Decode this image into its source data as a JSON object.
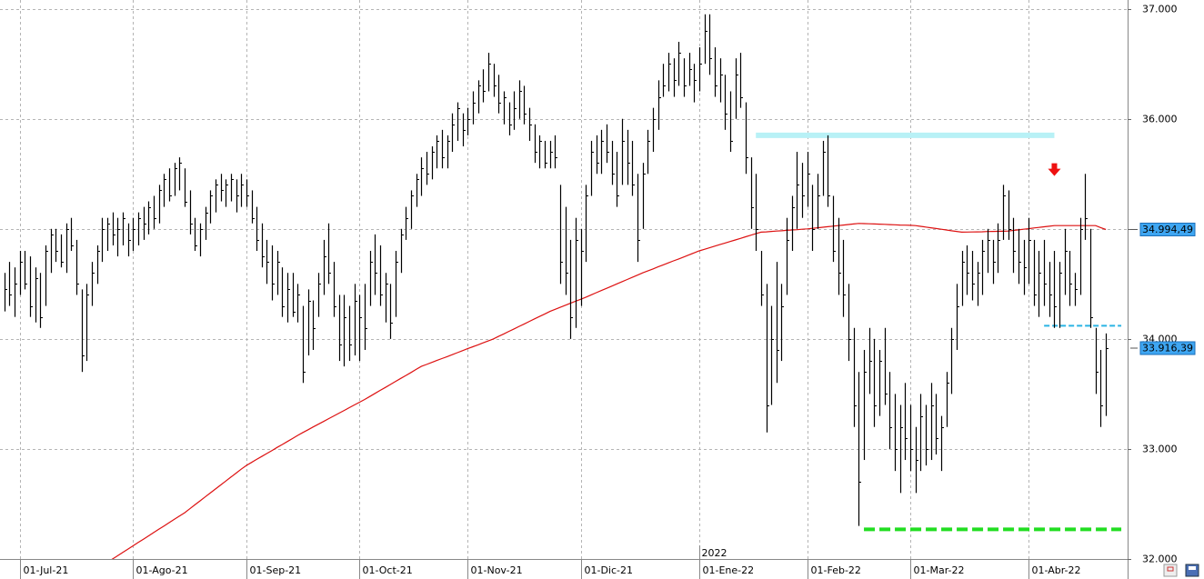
{
  "chart_data": {
    "type": "ohlc",
    "color": "#000000",
    "categories": [
      null,
      null,
      null,
      "01-Jul-21",
      null,
      null,
      null,
      null,
      null,
      null,
      null,
      null,
      null,
      null,
      null,
      null,
      null,
      null,
      null,
      null,
      null,
      null,
      null,
      null,
      null,
      "01-Ago-21",
      null,
      null,
      null,
      null,
      null,
      null,
      null,
      null,
      null,
      null,
      null,
      null,
      null,
      null,
      null,
      null,
      null,
      null,
      null,
      null,
      null,
      "01-Sep-21",
      null,
      null,
      null,
      null,
      null,
      null,
      null,
      null,
      null,
      null,
      null,
      null,
      null,
      null,
      null,
      null,
      null,
      null,
      null,
      null,
      null,
      "01-Oct-21",
      null,
      null,
      null,
      null,
      null,
      null,
      null,
      null,
      null,
      null,
      null,
      null,
      null,
      null,
      null,
      null,
      null,
      null,
      null,
      null,
      "01-Nov-21",
      null,
      null,
      null,
      null,
      null,
      null,
      null,
      null,
      null,
      null,
      null,
      null,
      null,
      null,
      null,
      null,
      null,
      null,
      null,
      null,
      null,
      "01-Dic-21",
      null,
      null,
      null,
      null,
      null,
      null,
      null,
      null,
      null,
      null,
      null,
      null,
      null,
      null,
      null,
      null,
      null,
      null,
      null,
      null,
      null,
      null,
      "01-Ene-22",
      null,
      null,
      null,
      null,
      null,
      null,
      null,
      null,
      null,
      null,
      null,
      null,
      null,
      null,
      null,
      null,
      null,
      null,
      null,
      null,
      "01-Feb-22",
      null,
      null,
      null,
      null,
      null,
      null,
      null,
      null,
      null,
      null,
      null,
      null,
      null,
      null,
      null,
      null,
      null,
      null,
      null,
      "01-Mar-22",
      null,
      null,
      null,
      null,
      null,
      null,
      null,
      null,
      null,
      null,
      null,
      null,
      null,
      null,
      null,
      null,
      null,
      null,
      null,
      null,
      null,
      null,
      "01-Abr-22",
      null,
      null,
      null,
      null,
      null,
      null,
      null,
      null,
      null,
      null,
      null,
      null,
      null,
      null,
      null
    ],
    "high": [
      34600,
      34700,
      34650,
      34800,
      34800,
      34750,
      34650,
      34600,
      34850,
      35000,
      35000,
      34950,
      35050,
      35100,
      34900,
      34450,
      34500,
      34700,
      34850,
      35100,
      35100,
      35150,
      35100,
      35150,
      35050,
      35100,
      35150,
      35200,
      35250,
      35300,
      35400,
      35500,
      35550,
      35600,
      35650,
      35550,
      35350,
      35100,
      35050,
      35200,
      35350,
      35450,
      35500,
      35450,
      35500,
      35450,
      35500,
      35450,
      35350,
      35200,
      35050,
      34900,
      34850,
      34800,
      34650,
      34600,
      34600,
      34500,
      34300,
      34450,
      34350,
      34600,
      34900,
      35050,
      34700,
      34400,
      34400,
      34300,
      34500,
      34400,
      34500,
      34800,
      34950,
      34850,
      34600,
      34500,
      34800,
      35000,
      35200,
      35350,
      35500,
      35650,
      35700,
      35750,
      35850,
      35900,
      35850,
      36050,
      36150,
      36050,
      36100,
      36250,
      36350,
      36450,
      36600,
      36500,
      36400,
      36250,
      36150,
      36250,
      36350,
      36300,
      36100,
      35950,
      35850,
      35800,
      35800,
      35850,
      35400,
      35200,
      34900,
      35100,
      35000,
      35400,
      35800,
      35850,
      35900,
      35950,
      35800,
      35700,
      36000,
      35900,
      35800,
      35500,
      35600,
      35900,
      36100,
      36350,
      36500,
      36600,
      36550,
      36700,
      36550,
      36600,
      36500,
      36650,
      36950,
      36950,
      36650,
      36550,
      36400,
      36250,
      36550,
      36600,
      36150,
      35650,
      35500,
      34800,
      34500,
      34300,
      34700,
      34500,
      35100,
      35300,
      35700,
      35600,
      35700,
      35400,
      35500,
      35800,
      35850,
      35300,
      35100,
      34900,
      34500,
      34100,
      33700,
      33900,
      34100,
      34000,
      33900,
      34100,
      33700,
      33500,
      33400,
      33600,
      33400,
      33200,
      33500,
      33400,
      33600,
      33500,
      33300,
      33700,
      34100,
      34500,
      34800,
      34850,
      34800,
      34700,
      34900,
      35000,
      34900,
      35050,
      35400,
      35350,
      35100,
      35000,
      34900,
      35100,
      34900,
      34800,
      34900,
      34700,
      34800,
      34700,
      35000,
      34800,
      34600,
      35100,
      35500,
      35000,
      34100,
      33900,
      34050
    ],
    "low": [
      34250,
      34300,
      34200,
      34400,
      34450,
      34200,
      34150,
      34100,
      34300,
      34600,
      34700,
      34650,
      34600,
      34800,
      34400,
      33700,
      33800,
      34300,
      34500,
      34700,
      34800,
      34850,
      34750,
      34850,
      34750,
      34800,
      34850,
      34900,
      34950,
      35000,
      35050,
      35200,
      35250,
      35300,
      35350,
      35200,
      34950,
      34800,
      34750,
      34900,
      35050,
      35150,
      35250,
      35200,
      35250,
      35150,
      35200,
      35200,
      35050,
      34800,
      34650,
      34500,
      34350,
      34400,
      34200,
      34150,
      34200,
      34150,
      33600,
      33850,
      33900,
      34200,
      34400,
      34500,
      34200,
      33800,
      33750,
      33800,
      33850,
      33800,
      33900,
      34300,
      34400,
      34300,
      34150,
      34000,
      34200,
      34600,
      34900,
      35000,
      35200,
      35300,
      35400,
      35450,
      35550,
      35550,
      35550,
      35700,
      35800,
      35750,
      35850,
      35950,
      36050,
      36150,
      36250,
      36200,
      36050,
      35950,
      35850,
      35900,
      36000,
      35950,
      35800,
      35600,
      35550,
      35550,
      35550,
      35550,
      34500,
      34400,
      34000,
      34100,
      34300,
      34700,
      35300,
      35500,
      35500,
      35600,
      35400,
      35200,
      35400,
      35400,
      35300,
      34700,
      35000,
      35500,
      35700,
      35900,
      36200,
      36250,
      36200,
      36300,
      36200,
      36300,
      36150,
      36250,
      36500,
      36400,
      36200,
      36150,
      35900,
      35700,
      36000,
      36100,
      35500,
      35000,
      34800,
      34300,
      33150,
      33400,
      33600,
      33800,
      34400,
      34800,
      35000,
      35100,
      35200,
      34800,
      35000,
      35300,
      35200,
      34700,
      34400,
      34200,
      33800,
      33200,
      32300,
      32900,
      33500,
      33200,
      33300,
      33400,
      33000,
      32800,
      32600,
      32900,
      32800,
      32600,
      32800,
      32850,
      32900,
      32950,
      32800,
      33200,
      33500,
      33900,
      34300,
      34400,
      34350,
      34300,
      34400,
      34600,
      34500,
      34600,
      34900,
      34900,
      34600,
      34500,
      34400,
      34500,
      34300,
      34200,
      34300,
      34200,
      34100,
      34100,
      34400,
      34300,
      34300,
      34400,
      34900,
      34100,
      33500,
      33200,
      33300
    ],
    "close": [
      34450,
      34400,
      34500,
      34700,
      34500,
      34300,
      34550,
      34200,
      34800,
      34950,
      34800,
      34700,
      35000,
      34850,
      34500,
      33850,
      34400,
      34600,
      34800,
      35000,
      35050,
      34950,
      35000,
      35100,
      34900,
      35000,
      35100,
      35050,
      35200,
      35100,
      35350,
      35450,
      35300,
      35550,
      35600,
      35250,
      35050,
      34850,
      35000,
      35150,
      35300,
      35400,
      35350,
      35400,
      35450,
      35300,
      35400,
      35300,
      35100,
      34900,
      34750,
      34700,
      34500,
      34700,
      34300,
      34450,
      34250,
      34400,
      33700,
      34350,
      34100,
      34500,
      34750,
      34600,
      34300,
      33950,
      34200,
      33950,
      34350,
      34200,
      34100,
      34700,
      34600,
      34400,
      34500,
      34150,
      34700,
      34950,
      35100,
      35300,
      35450,
      35550,
      35500,
      35700,
      35800,
      35650,
      35800,
      35950,
      36100,
      35900,
      36000,
      36150,
      36300,
      36250,
      36500,
      36300,
      36150,
      36200,
      35950,
      36100,
      36250,
      36050,
      35950,
      35700,
      35800,
      35600,
      35700,
      35650,
      34700,
      34600,
      34200,
      34900,
      34800,
      35300,
      35700,
      35600,
      35800,
      35700,
      35500,
      35300,
      35800,
      35600,
      35400,
      34900,
      35500,
      35800,
      36000,
      36200,
      36300,
      36500,
      36350,
      36600,
      36300,
      36450,
      36350,
      36500,
      36800,
      36550,
      36300,
      36400,
      36050,
      35800,
      36400,
      36200,
      35650,
      35200,
      35000,
      34400,
      33400,
      34000,
      33900,
      34300,
      34900,
      35200,
      35400,
      35300,
      35500,
      35000,
      35300,
      35700,
      35300,
      34800,
      34600,
      34400,
      34000,
      33400,
      32700,
      33700,
      33800,
      33400,
      33800,
      33500,
      33200,
      33000,
      33200,
      33100,
      33000,
      32900,
      33300,
      33000,
      33400,
      33100,
      33200,
      33600,
      34000,
      34300,
      34700,
      34600,
      34500,
      34600,
      34800,
      34900,
      34700,
      34900,
      35300,
      35000,
      34800,
      34700,
      34650,
      34900,
      34400,
      34600,
      34500,
      34400,
      34300,
      34600,
      34800,
      34500,
      34450,
      35000,
      35100,
      34200,
      33700,
      33400,
      33916.39
    ],
    "close_last_label": "33.916,39",
    "ma": {
      "color": "#dd1111",
      "last_label": "34.994,49",
      "values": [
        null,
        null,
        null,
        null,
        null,
        null,
        null,
        null,
        null,
        null,
        null,
        null,
        null,
        null,
        null,
        null,
        null,
        null,
        null,
        null,
        31970,
        32000,
        32030,
        32060,
        32090,
        32120,
        32150,
        32180,
        32210,
        32240,
        32270,
        32300,
        32330,
        32360,
        32390,
        32420,
        32456,
        32492,
        32528,
        32564,
        32600,
        32636,
        32672,
        32708,
        32744,
        32780,
        32816,
        32850,
        32877,
        32905,
        32932,
        32959,
        32986,
        33014,
        33041,
        33068,
        33095,
        33123,
        33150,
        33175,
        33200,
        33225,
        33250,
        33275,
        33300,
        33325,
        33350,
        33375,
        33400,
        33425,
        33450,
        33477,
        33505,
        33532,
        33559,
        33586,
        33614,
        33641,
        33668,
        33695,
        33723,
        33750,
        33768,
        33786,
        33804,
        33821,
        33839,
        33857,
        33875,
        33893,
        33911,
        33929,
        33946,
        33964,
        33982,
        34000,
        34023,
        34045,
        34068,
        34091,
        34114,
        34136,
        34159,
        34182,
        34205,
        34227,
        34250,
        34269,
        34287,
        34306,
        34324,
        34343,
        34361,
        34380,
        34400,
        34420,
        34440,
        34460,
        34480,
        34500,
        34520,
        34540,
        34560,
        34580,
        34600,
        34618,
        34636,
        34655,
        34673,
        34691,
        34709,
        34727,
        34745,
        34764,
        34782,
        34800,
        34814,
        34828,
        34843,
        34857,
        34871,
        34885,
        34899,
        34913,
        34928,
        34942,
        34956,
        34970,
        34973,
        34977,
        34980,
        34983,
        34987,
        34990,
        34993,
        34997,
        35000,
        35005,
        35010,
        35015,
        35020,
        35025,
        35030,
        35035,
        35040,
        35045,
        35050,
        35048,
        35046,
        35045,
        35043,
        35041,
        35039,
        35037,
        35035,
        35034,
        35032,
        35030,
        35023,
        35017,
        35010,
        35003,
        34997,
        34990,
        34983,
        34977,
        34970,
        34971,
        34972,
        34973,
        34974,
        34976,
        34977,
        34978,
        34979,
        34980,
        34986,
        34991,
        34997,
        35002,
        35008,
        35013,
        35019,
        35024,
        35030,
        35030,
        35030,
        35030,
        35030,
        35030,
        35030,
        35030,
        35030,
        35012,
        34994.49
      ]
    },
    "ylim": [
      32000,
      37080
    ],
    "yticks": [
      {
        "value": 32000,
        "label": "32.000"
      },
      {
        "value": 33000,
        "label": "33.000"
      },
      {
        "value": 34000,
        "label": "34.000"
      },
      {
        "value": 35000,
        "label": "35.000"
      },
      {
        "value": 36000,
        "label": "36.000"
      },
      {
        "value": 37000,
        "label": "37.000"
      }
    ],
    "grid": true,
    "year_marker": {
      "label": "2022",
      "at": 135
    },
    "annotations": [
      {
        "kind": "band",
        "y": 35850,
        "x1": 146,
        "x2": 204,
        "color": "#b8f1f6"
      },
      {
        "kind": "dashed",
        "y": 34120,
        "x1": 202,
        "x2": 217,
        "color": "#2ab4e4"
      },
      {
        "kind": "dashed",
        "y": 32270,
        "x1": 167,
        "x2": 217,
        "color": "#22dd22"
      },
      {
        "kind": "arrow",
        "y": 35530,
        "x": 204,
        "color": "#ee1111"
      }
    ]
  }
}
